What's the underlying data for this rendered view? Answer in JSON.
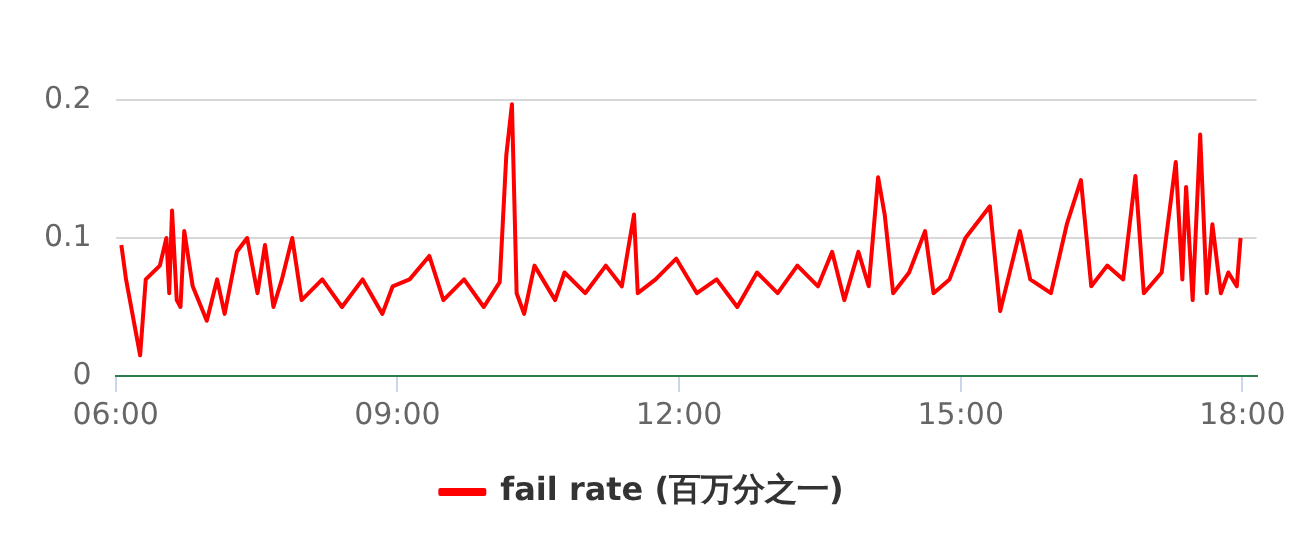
{
  "chart_data": {
    "type": "line",
    "xlim": [
      6,
      18.15
    ],
    "ylim": [
      0,
      0.2
    ],
    "xticks": [
      {
        "value": 6,
        "label": "06:00"
      },
      {
        "value": 9,
        "label": "09:00"
      },
      {
        "value": 12,
        "label": "12:00"
      },
      {
        "value": 15,
        "label": "15:00"
      },
      {
        "value": 18,
        "label": "18:00"
      }
    ],
    "yticks": [
      0,
      0.1,
      0.2
    ],
    "grid": "y",
    "legend": "bottom",
    "marker": "none",
    "line_style": "solid",
    "series": [
      {
        "name": "fail rate (百万分之一)",
        "color": "#ff0000",
        "x": [
          6.06,
          6.11,
          6.26,
          6.32,
          6.47,
          6.54,
          6.57,
          6.6,
          6.65,
          6.69,
          6.73,
          6.82,
          6.97,
          7.08,
          7.16,
          7.29,
          7.4,
          7.51,
          7.59,
          7.68,
          7.77,
          7.88,
          7.98,
          8.2,
          8.41,
          8.63,
          8.84,
          8.95,
          9.13,
          9.34,
          9.49,
          9.71,
          9.92,
          10.09,
          10.16,
          10.22,
          10.27,
          10.35,
          10.46,
          10.68,
          10.78,
          11,
          11.22,
          11.39,
          11.52,
          11.56,
          11.75,
          11.97,
          12.19,
          12.4,
          12.62,
          12.83,
          13.05,
          13.26,
          13.48,
          13.63,
          13.76,
          13.91,
          14.02,
          14.12,
          14.19,
          14.28,
          14.45,
          14.62,
          14.71,
          14.88,
          15.05,
          15.31,
          15.42,
          15.63,
          15.74,
          15.96,
          16.13,
          16.28,
          16.39,
          16.56,
          16.73,
          16.86,
          16.95,
          17.14,
          17.29,
          17.36,
          17.4,
          17.47,
          17.55,
          17.62,
          17.68,
          17.77,
          17.85,
          17.94,
          17.98
        ],
        "values": [
          0.095,
          0.07,
          0.015,
          0.07,
          0.08,
          0.1,
          0.06,
          0.12,
          0.055,
          0.05,
          0.105,
          0.065,
          0.04,
          0.07,
          0.045,
          0.09,
          0.1,
          0.06,
          0.095,
          0.05,
          0.07,
          0.1,
          0.055,
          0.07,
          0.05,
          0.07,
          0.045,
          0.065,
          0.07,
          0.087,
          0.055,
          0.07,
          0.05,
          0.068,
          0.16,
          0.197,
          0.06,
          0.045,
          0.08,
          0.055,
          0.075,
          0.06,
          0.08,
          0.065,
          0.117,
          0.06,
          0.07,
          0.085,
          0.06,
          0.07,
          0.05,
          0.075,
          0.06,
          0.08,
          0.065,
          0.09,
          0.055,
          0.09,
          0.065,
          0.144,
          0.117,
          0.06,
          0.075,
          0.105,
          0.06,
          0.07,
          0.1,
          0.123,
          0.047,
          0.105,
          0.07,
          0.06,
          0.11,
          0.142,
          0.065,
          0.08,
          0.07,
          0.145,
          0.06,
          0.075,
          0.155,
          0.07,
          0.137,
          0.055,
          0.175,
          0.06,
          0.11,
          0.06,
          0.075,
          0.065,
          0.1
        ]
      }
    ]
  }
}
